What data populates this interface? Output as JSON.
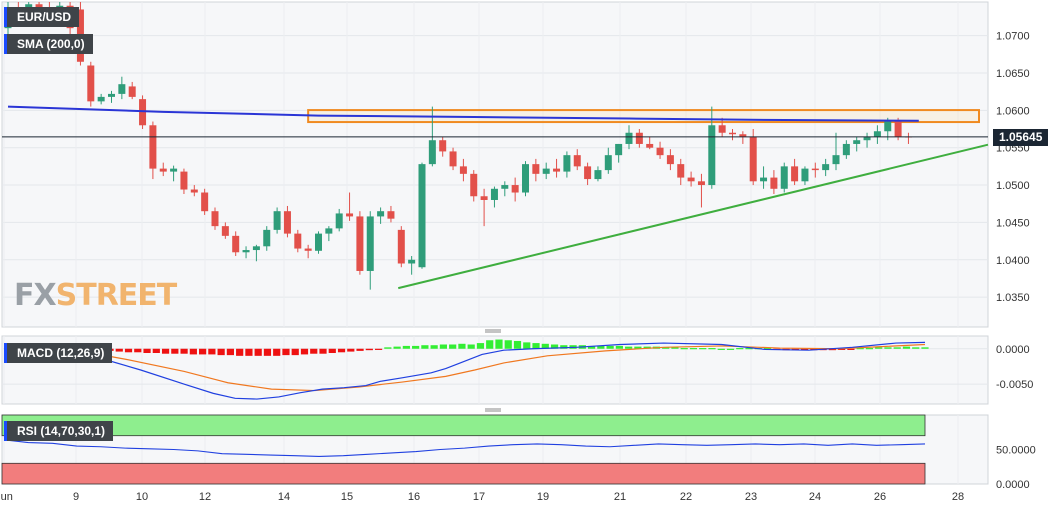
{
  "chart_data": [
    {
      "type": "candlestick",
      "symbol": "EUR/USD",
      "indicator": "SMA (200,0)",
      "last_price": "1.05645",
      "y_ticks": [
        "1.0700",
        "1.0650",
        "1.0600",
        "1.0550",
        "1.0500",
        "1.0450",
        "1.0400",
        "1.0350"
      ],
      "ylim": [
        1.031,
        1.0745
      ],
      "x_ticks": [
        "Jun",
        "9",
        "10",
        "12",
        "14",
        "15",
        "16",
        "17",
        "19",
        "21",
        "22",
        "23",
        "24",
        "26",
        "28"
      ],
      "ohlc": [
        [
          1.071,
          1.0745,
          1.07,
          1.0735
        ],
        [
          1.0735,
          1.0745,
          1.072,
          1.073
        ],
        [
          1.073,
          1.0745,
          1.0725,
          1.0742
        ],
        [
          1.0742,
          1.0745,
          1.0728,
          1.0732
        ],
        [
          1.0732,
          1.0745,
          1.0715,
          1.072
        ],
        [
          1.072,
          1.0745,
          1.0715,
          1.074
        ],
        [
          1.074,
          1.0745,
          1.07,
          1.071
        ],
        [
          1.0735,
          1.0745,
          1.066,
          1.0665
        ],
        [
          1.066,
          1.0665,
          1.0605,
          1.0612
        ],
        [
          1.0612,
          1.0622,
          1.0608,
          1.0618
        ],
        [
          1.0618,
          1.0626,
          1.061,
          1.0622
        ],
        [
          1.0622,
          1.0645,
          1.0615,
          1.0635
        ],
        [
          1.0632,
          1.0638,
          1.0615,
          1.0618
        ],
        [
          1.0615,
          1.062,
          1.0575,
          1.058
        ],
        [
          1.058,
          1.0585,
          1.0508,
          1.0522
        ],
        [
          1.0522,
          1.053,
          1.0512,
          1.0518
        ],
        [
          1.0518,
          1.0526,
          1.0505,
          1.0522
        ],
        [
          1.0518,
          1.0522,
          1.0488,
          1.0494
        ],
        [
          1.0494,
          1.05,
          1.0485,
          1.049
        ],
        [
          1.049,
          1.0495,
          1.046,
          1.0465
        ],
        [
          1.0465,
          1.047,
          1.044,
          1.0445
        ],
        [
          1.0445,
          1.045,
          1.0428,
          1.0432
        ],
        [
          1.0432,
          1.0438,
          1.0405,
          1.041
        ],
        [
          1.041,
          1.0418,
          1.0402,
          1.0413
        ],
        [
          1.0413,
          1.042,
          1.0398,
          1.0418
        ],
        [
          1.0418,
          1.0445,
          1.0412,
          1.044
        ],
        [
          1.044,
          1.047,
          1.0435,
          1.0465
        ],
        [
          1.0465,
          1.0472,
          1.043,
          1.0435
        ],
        [
          1.0435,
          1.044,
          1.041,
          1.0415
        ],
        [
          1.0415,
          1.042,
          1.0402,
          1.0412
        ],
        [
          1.0412,
          1.0438,
          1.0408,
          1.0435
        ],
        [
          1.0435,
          1.0445,
          1.0425,
          1.0442
        ],
        [
          1.0442,
          1.0468,
          1.0438,
          1.0462
        ],
        [
          1.0462,
          1.049,
          1.0452,
          1.0458
        ],
        [
          1.0458,
          1.0465,
          1.038,
          1.0385
        ],
        [
          1.0385,
          1.0465,
          1.036,
          1.0458
        ],
        [
          1.0458,
          1.047,
          1.0448,
          1.0465
        ],
        [
          1.0465,
          1.0472,
          1.045,
          1.0455
        ],
        [
          1.044,
          1.0445,
          1.039,
          1.0395
        ],
        [
          1.0395,
          1.0405,
          1.038,
          1.04
        ],
        [
          1.039,
          1.053,
          1.0388,
          1.0528
        ],
        [
          1.0528,
          1.0605,
          1.0525,
          1.056
        ],
        [
          1.056,
          1.0565,
          1.0538,
          1.0545
        ],
        [
          1.0545,
          1.055,
          1.052,
          1.0525
        ],
        [
          1.0525,
          1.0535,
          1.0505,
          1.0515
        ],
        [
          1.0515,
          1.052,
          1.0478,
          1.0485
        ],
        [
          1.0485,
          1.0495,
          1.0445,
          1.048
        ],
        [
          1.048,
          1.0498,
          1.047,
          1.0495
        ],
        [
          1.0495,
          1.0505,
          1.0485,
          1.05
        ],
        [
          1.05,
          1.051,
          1.0478,
          1.049
        ],
        [
          1.049,
          1.0532,
          1.0485,
          1.0528
        ],
        [
          1.0528,
          1.0535,
          1.0505,
          1.0515
        ],
        [
          1.0515,
          1.053,
          1.0508,
          1.0522
        ],
        [
          1.0522,
          1.0535,
          1.051,
          1.0518
        ],
        [
          1.0518,
          1.0545,
          1.051,
          1.054
        ],
        [
          1.054,
          1.0548,
          1.052,
          1.0525
        ],
        [
          1.0525,
          1.053,
          1.05,
          1.0508
        ],
        [
          1.0508,
          1.0525,
          1.0505,
          1.052
        ],
        [
          1.052,
          1.055,
          1.0515,
          1.054
        ],
        [
          1.054,
          1.0555,
          1.053,
          1.0555
        ],
        [
          1.0555,
          1.058,
          1.0548,
          1.057
        ],
        [
          1.057,
          1.0575,
          1.055,
          1.0555
        ],
        [
          1.0555,
          1.0565,
          1.0548,
          1.055
        ],
        [
          1.055,
          1.0558,
          1.0535,
          1.054
        ],
        [
          1.054,
          1.0548,
          1.052,
          1.0528
        ],
        [
          1.0528,
          1.0535,
          1.05,
          1.051
        ],
        [
          1.051,
          1.0518,
          1.0498,
          1.0505
        ],
        [
          1.0505,
          1.0515,
          1.047,
          1.05
        ],
        [
          1.05,
          1.0605,
          1.0495,
          1.058
        ],
        [
          1.058,
          1.059,
          1.0565,
          1.057
        ],
        [
          1.057,
          1.0575,
          1.056,
          1.0568
        ],
        [
          1.0568,
          1.0572,
          1.0555,
          1.0565
        ],
        [
          1.0565,
          1.0575,
          1.05,
          1.0505
        ],
        [
          1.0505,
          1.0525,
          1.0495,
          1.051
        ],
        [
          1.051,
          1.052,
          1.0488,
          1.0495
        ],
        [
          1.0495,
          1.053,
          1.049,
          1.0525
        ],
        [
          1.0525,
          1.0535,
          1.05,
          1.0505
        ],
        [
          1.0505,
          1.0525,
          1.05,
          1.0522
        ],
        [
          1.0522,
          1.053,
          1.051,
          1.052
        ],
        [
          1.052,
          1.0535,
          1.0512,
          1.0528
        ],
        [
          1.0528,
          1.057,
          1.052,
          1.054
        ],
        [
          1.054,
          1.056,
          1.0535,
          1.0555
        ],
        [
          1.0555,
          1.0565,
          1.0545,
          1.056
        ],
        [
          1.056,
          1.057,
          1.055,
          1.0565
        ],
        [
          1.0565,
          1.058,
          1.0555,
          1.0572
        ],
        [
          1.0572,
          1.059,
          1.056,
          1.0585
        ],
        [
          1.0585,
          1.059,
          1.056,
          1.0565
        ],
        [
          1.0565,
          1.057,
          1.0555,
          1.0564
        ]
      ],
      "sma_200": [
        [
          0,
          1.0605
        ],
        [
          15,
          1.0598
        ],
        [
          30,
          1.0593
        ],
        [
          45,
          1.0591
        ],
        [
          60,
          1.0589
        ],
        [
          75,
          1.0587
        ],
        [
          88,
          1.0586
        ]
      ],
      "trendline": [
        [
          35,
          1.0362
        ],
        [
          92,
          1.0554
        ]
      ],
      "resistance_zone": [
        [
          29,
          1.0599
        ],
        [
          92,
          1.0591
        ]
      ]
    },
    {
      "type": "macd",
      "label": "MACD (12,26,9)",
      "y_ticks": [
        "0.0000",
        "-0.0050"
      ],
      "ylim": [
        -0.0078,
        0.0018
      ],
      "histogram": [
        -0.0003,
        -0.0004,
        -0.0005,
        -0.0005,
        -0.0006,
        -0.0006,
        -0.0007,
        -0.0007,
        -0.0007,
        -0.0008,
        -0.0008,
        -0.0008,
        -0.0009,
        -0.0009,
        -0.001,
        -0.001,
        -0.001,
        -0.001,
        -0.001,
        -0.0009,
        -0.0009,
        -0.0008,
        -0.0007,
        -0.0007,
        -0.0006,
        -0.0005,
        -0.0004,
        -0.0003,
        -0.0002,
        -0.0001,
        0.0002,
        0.0003,
        0.0004,
        0.0004,
        0.0005,
        0.0005,
        0.0006,
        0.0006,
        0.0007,
        0.0006,
        0.0008,
        0.0012,
        0.0013,
        0.0012,
        0.0011,
        0.0009,
        0.0008,
        0.0007,
        0.0006,
        0.0005,
        0.0005,
        0.0005,
        0.0004,
        0.0004,
        0.0004,
        0.0004,
        0.0003,
        0.0003,
        0.0003,
        0.0003,
        0.0002,
        0.0002,
        0.0001,
        0.0001,
        0.0001,
        0.0001,
        0.0,
        0.0,
        0.0001,
        0.0001,
        0.0001,
        0.0001,
        -0.0001,
        -0.0002,
        -0.0002,
        -0.0002,
        -0.0002,
        -0.0002,
        -0.0002,
        -0.0001,
        -0.0001,
        0.0001,
        0.0001,
        0.0002,
        0.0002,
        0.0002,
        0.0003,
        0.0002,
        0.0002
      ],
      "macd_line": [
        [
          0,
          0.0005
        ],
        [
          6,
          0.0001
        ],
        [
          12,
          -0.0012
        ],
        [
          18,
          -0.003
        ],
        [
          24,
          -0.005
        ],
        [
          28,
          -0.0063
        ],
        [
          31,
          -0.007
        ],
        [
          34,
          -0.0071
        ],
        [
          37,
          -0.0068
        ],
        [
          40,
          -0.0062
        ],
        [
          43,
          -0.0057
        ],
        [
          46,
          -0.0055
        ],
        [
          49,
          -0.0052
        ],
        [
          51,
          -0.0046
        ],
        [
          54,
          -0.0041
        ],
        [
          58,
          -0.0034
        ],
        [
          60,
          -0.0028
        ],
        [
          62,
          -0.002
        ],
        [
          65,
          -0.0008
        ],
        [
          68,
          -0.0002
        ],
        [
          72,
          0.0
        ],
        [
          78,
          0.0002
        ],
        [
          84,
          0.0006
        ],
        [
          90,
          0.0008
        ],
        [
          98,
          0.0006
        ],
        [
          104,
          -0.0001
        ],
        [
          110,
          -0.0002
        ],
        [
          116,
          0.0002
        ],
        [
          122,
          0.0008
        ],
        [
          126,
          0.0009
        ]
      ],
      "signal_line": [
        [
          0,
          0.0004
        ],
        [
          8,
          0.0
        ],
        [
          16,
          -0.0015
        ],
        [
          24,
          -0.0032
        ],
        [
          30,
          -0.0048
        ],
        [
          36,
          -0.0057
        ],
        [
          42,
          -0.0059
        ],
        [
          48,
          -0.0054
        ],
        [
          54,
          -0.0047
        ],
        [
          60,
          -0.0039
        ],
        [
          64,
          -0.003
        ],
        [
          68,
          -0.002
        ],
        [
          74,
          -0.001
        ],
        [
          82,
          -0.0003
        ],
        [
          90,
          0.0002
        ],
        [
          98,
          0.0004
        ],
        [
          106,
          0.0001
        ],
        [
          114,
          0.0
        ],
        [
          120,
          0.0003
        ],
        [
          126,
          0.0006
        ]
      ]
    },
    {
      "type": "rsi",
      "label": "RSI (14,70,30,1)",
      "y_ticks": [
        "50.0000",
        "0.0000"
      ],
      "ylim": [
        0,
        100
      ],
      "upper": 70,
      "lower": 30,
      "rsi_line": [
        [
          0,
          64
        ],
        [
          4,
          60
        ],
        [
          8,
          59
        ],
        [
          12,
          55
        ],
        [
          16,
          54
        ],
        [
          20,
          52
        ],
        [
          24,
          51
        ],
        [
          28,
          50
        ],
        [
          32,
          48
        ],
        [
          36,
          44
        ],
        [
          40,
          43
        ],
        [
          44,
          42
        ],
        [
          48,
          41
        ],
        [
          52,
          40
        ],
        [
          56,
          41
        ],
        [
          60,
          43
        ],
        [
          64,
          45
        ],
        [
          68,
          47
        ],
        [
          72,
          50
        ],
        [
          76,
          52
        ],
        [
          80,
          55
        ],
        [
          84,
          57
        ],
        [
          88,
          58
        ],
        [
          92,
          57
        ],
        [
          96,
          55
        ],
        [
          100,
          54
        ],
        [
          104,
          56
        ],
        [
          108,
          58
        ],
        [
          112,
          57
        ],
        [
          116,
          56
        ],
        [
          120,
          57
        ],
        [
          124,
          58
        ],
        [
          128,
          57
        ],
        [
          132,
          58
        ],
        [
          136,
          56
        ],
        [
          140,
          58
        ],
        [
          144,
          56
        ],
        [
          148,
          57
        ],
        [
          152,
          58
        ]
      ]
    }
  ],
  "logo": {
    "fx": "FX",
    "street": "STREET"
  }
}
